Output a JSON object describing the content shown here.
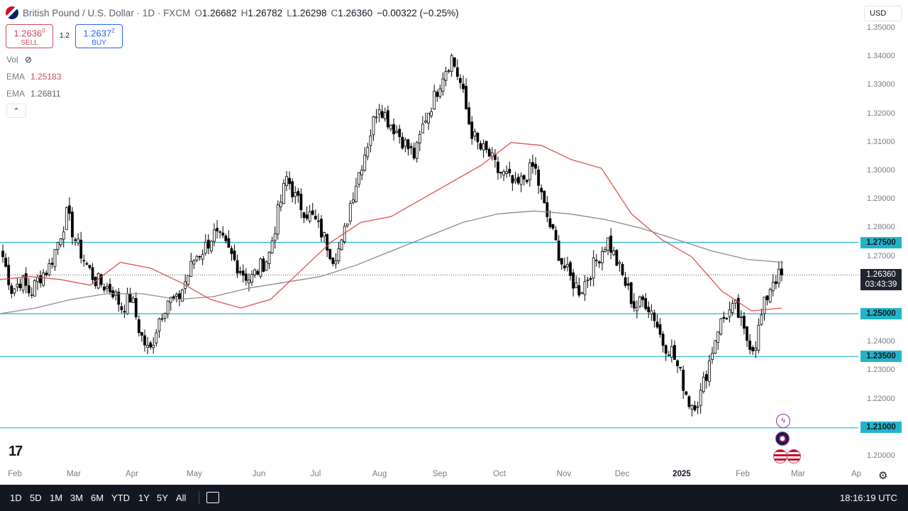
{
  "header": {
    "symbol_title": "British Pound / U.S. Dollar · 1D · FXCM",
    "ohlc": [
      {
        "k": "O",
        "v": "1.26682"
      },
      {
        "k": "H",
        "v": "1.26782"
      },
      {
        "k": "L",
        "v": "1.26298"
      },
      {
        "k": "C",
        "v": "1.26360"
      }
    ],
    "change": "−0.00322 (−0.25%)"
  },
  "trade": {
    "sell_price": "1.2636",
    "sell_sup": "0",
    "sell_label": "SELL",
    "spread": "1.2",
    "buy_price": "1.2637",
    "buy_sup": "2",
    "buy_label": "BUY"
  },
  "indicators": [
    {
      "name": "Vol",
      "value": ""
    },
    {
      "name": "EMA",
      "value": "1.25183"
    },
    {
      "name": "EMA",
      "value": "1.26811"
    }
  ],
  "collapse_glyph": "⌃",
  "currency": "USD",
  "y_axis_labels": [
    "1.35000",
    "1.34000",
    "1.33000",
    "1.32000",
    "1.31000",
    "1.30000",
    "1.29000",
    "1.28000",
    "1.27000",
    "1.24000",
    "1.23000",
    "1.22000",
    "1.20000"
  ],
  "price_levels": [
    "1.27500",
    "1.25000",
    "1.23500",
    "1.21000"
  ],
  "last_price": {
    "price": "1.26360",
    "countdown": "03:43:39"
  },
  "x_axis_labels": [
    "Feb",
    "Mar",
    "Apr",
    "May",
    "Jun",
    "Jul",
    "Aug",
    "Sep",
    "Oct",
    "Nov",
    "Dec",
    "2025",
    "Feb",
    "Mar",
    "Ap"
  ],
  "logo_text": "17",
  "bottom_bar": {
    "timeframes": [
      "1D",
      "5D",
      "1M",
      "3M",
      "6M",
      "YTD",
      "1Y",
      "5Y",
      "All"
    ],
    "clock": "18:16:19 UTC"
  },
  "colors": {
    "up": "#ffffff",
    "down": "#000000",
    "ema_fast": "#e05050",
    "ema_slow": "#8c8c8c",
    "level_line": "#22b5c9"
  },
  "icons": {
    "visibility": "eye-off-icon",
    "event_1": "lightning-icon",
    "event_2": "gb-flag-icon",
    "event_3": "us-flag-icon",
    "settings": "gear-icon",
    "date_range": "calendar-icon"
  },
  "chart_data": {
    "type": "candlestick",
    "y_range": [
      1.195,
      1.355
    ],
    "horizontal_levels": [
      1.275,
      1.25,
      1.235,
      1.21
    ],
    "ema_fast": {
      "start": 1.262,
      "points": [
        1.262,
        1.263,
        1.262,
        1.26,
        1.268,
        1.266,
        1.261,
        1.255,
        1.252,
        1.255,
        1.265,
        1.275,
        1.282,
        1.284,
        1.29,
        1.296,
        1.302,
        1.31,
        1.309,
        1.304,
        1.301,
        1.285,
        1.276,
        1.27,
        1.258,
        1.251,
        1.252
      ]
    },
    "ema_slow": {
      "points": [
        1.25,
        1.252,
        1.255,
        1.257,
        1.257,
        1.255,
        1.256,
        1.259,
        1.261,
        1.263,
        1.267,
        1.272,
        1.277,
        1.282,
        1.285,
        1.286,
        1.285,
        1.283,
        1.28,
        1.276,
        1.272,
        1.269,
        1.268
      ]
    },
    "closes": [
      1.27,
      1.258,
      1.262,
      1.257,
      1.263,
      1.266,
      1.275,
      1.285,
      1.275,
      1.268,
      1.262,
      1.26,
      1.258,
      1.252,
      1.256,
      1.243,
      1.236,
      1.248,
      1.255,
      1.254,
      1.262,
      1.27,
      1.273,
      1.278,
      1.275,
      1.27,
      1.265,
      1.262,
      1.266,
      1.27,
      1.285,
      1.298,
      1.29,
      1.286,
      1.283,
      1.277,
      1.27,
      1.274,
      1.29,
      1.301,
      1.312,
      1.324,
      1.318,
      1.314,
      1.309,
      1.305,
      1.318,
      1.325,
      1.334,
      1.34,
      1.33,
      1.315,
      1.308,
      1.306,
      1.3,
      1.298,
      1.294,
      1.298,
      1.302,
      1.288,
      1.278,
      1.268,
      1.262,
      1.258,
      1.264,
      1.27,
      1.276,
      1.268,
      1.26,
      1.252,
      1.255,
      1.25,
      1.24,
      1.237,
      1.228,
      1.218,
      1.22,
      1.232,
      1.245,
      1.25,
      1.252,
      1.242,
      1.238,
      1.252,
      1.262,
      1.2636
    ]
  }
}
